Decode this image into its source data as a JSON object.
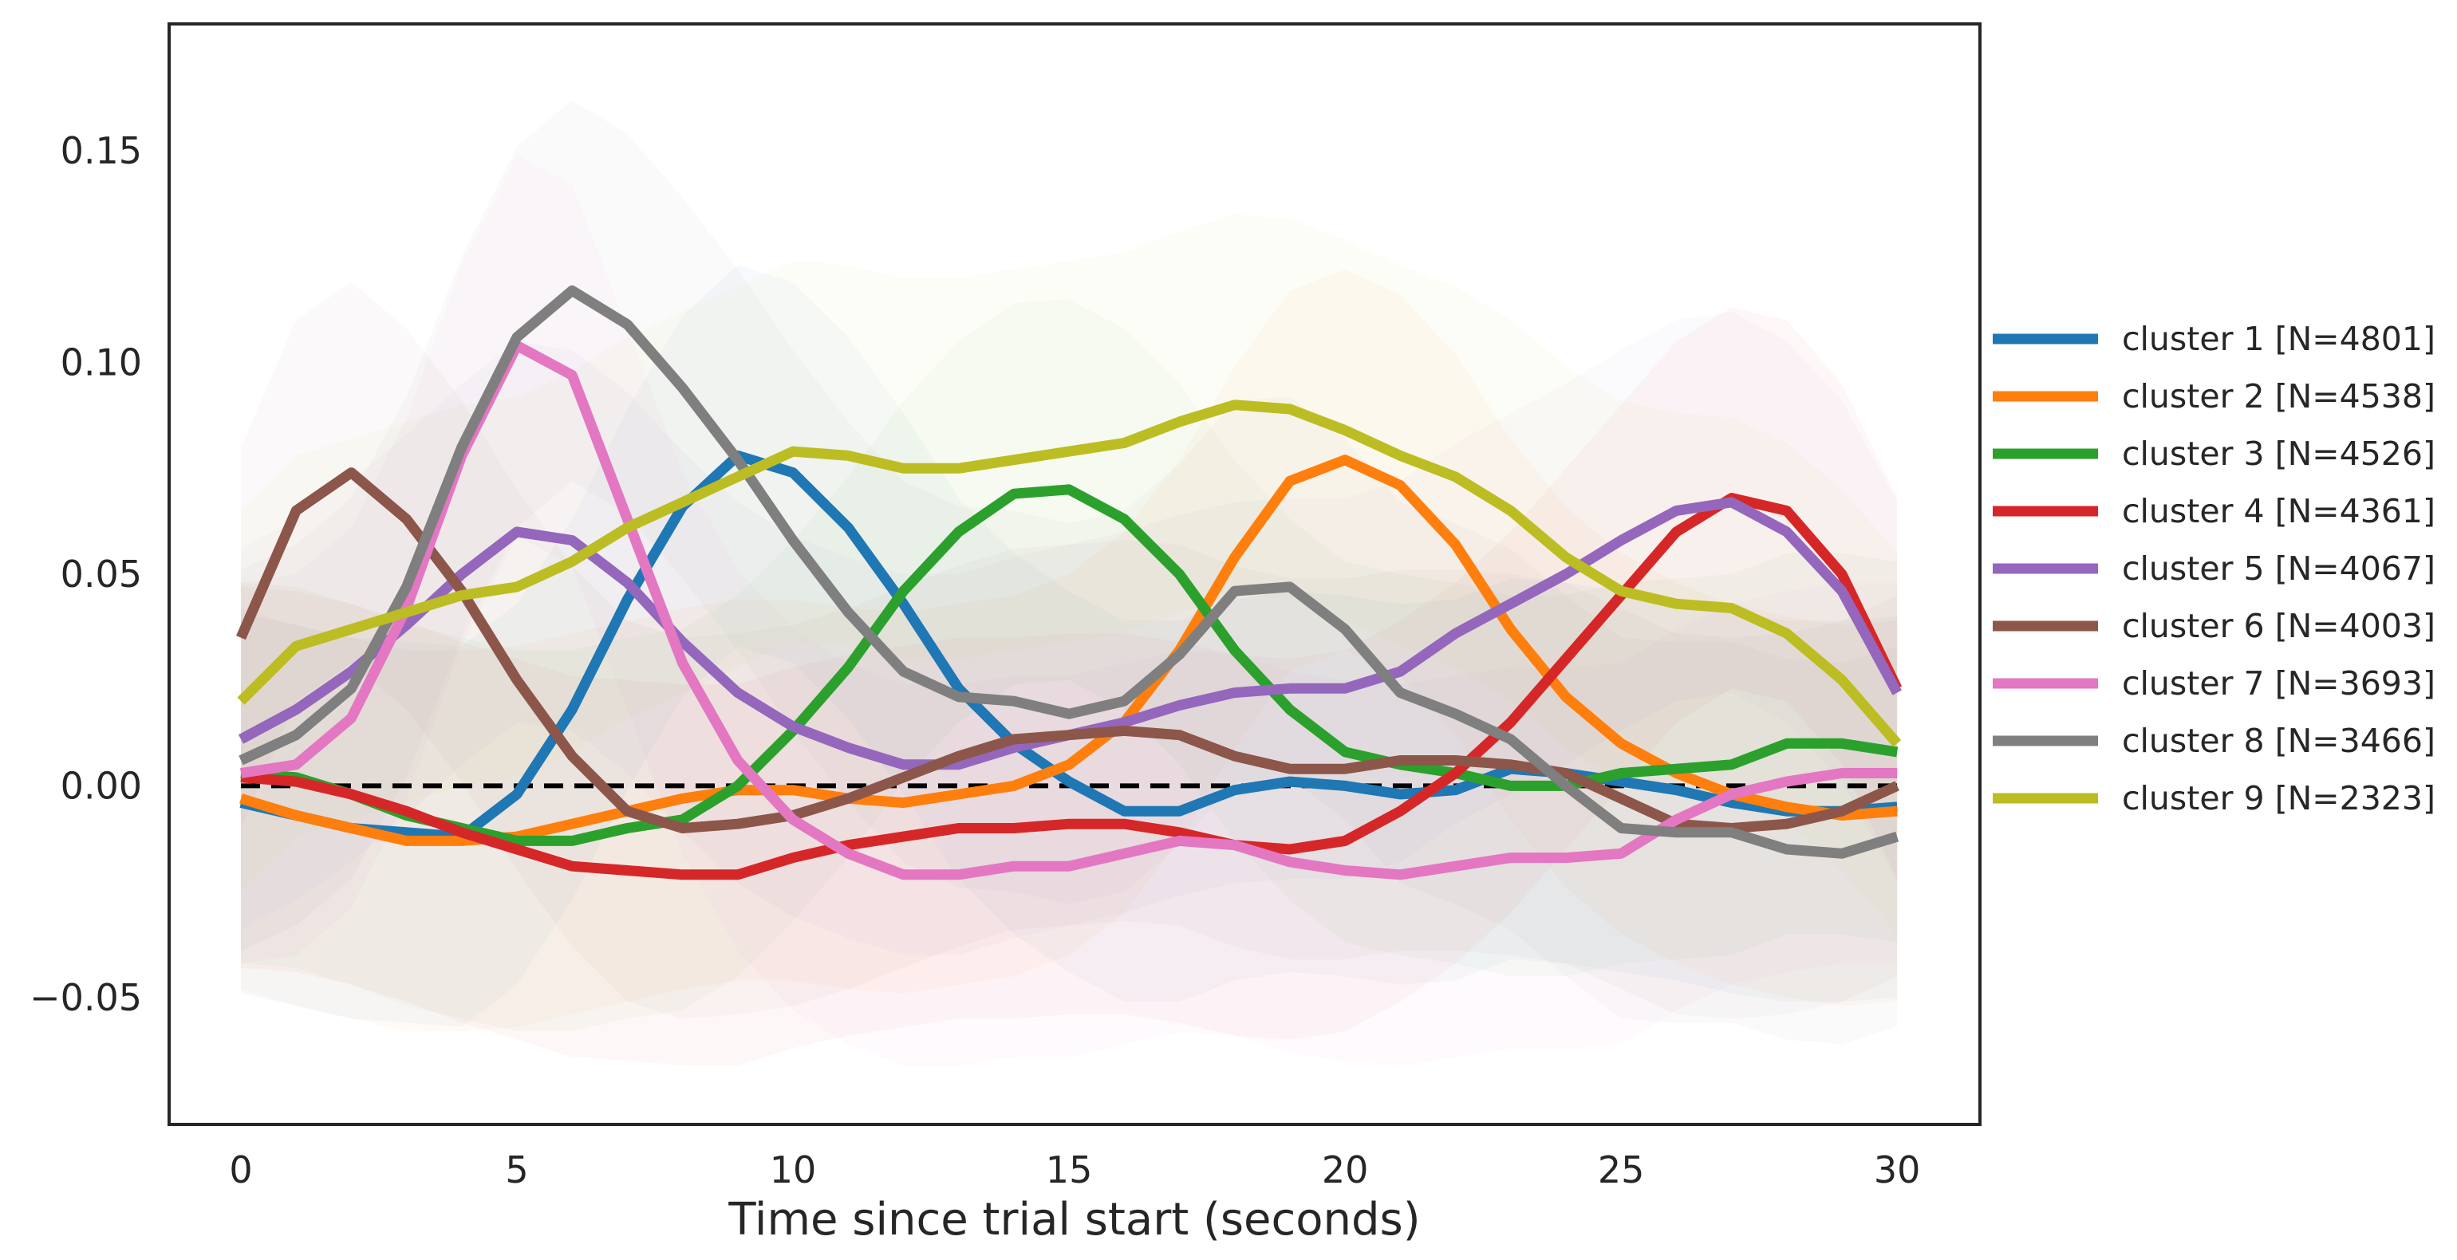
{
  "chart_data": {
    "type": "line",
    "title": "",
    "xlabel": "Time since trial start (seconds)",
    "ylabel": "",
    "xlim": [
      -1.3,
      31.5
    ],
    "ylim": [
      -0.08,
      0.18
    ],
    "xticks": [
      0,
      5,
      10,
      15,
      20,
      25,
      30
    ],
    "xtick_labels": [
      "0",
      "5",
      "10",
      "15",
      "20",
      "25",
      "30"
    ],
    "yticks": [
      -0.05,
      0.0,
      0.05,
      0.1,
      0.15
    ],
    "ytick_labels": [
      "−0.05",
      "0.00",
      "0.05",
      "0.10",
      "0.15"
    ],
    "grid": false,
    "legend_position": "outside-right",
    "reference_line": {
      "y": 0.0,
      "style": "dashed",
      "color": "#000000"
    },
    "x": [
      0,
      1,
      2,
      3,
      4,
      5,
      6,
      7,
      8,
      9,
      10,
      11,
      12,
      13,
      14,
      15,
      16,
      17,
      18,
      19,
      20,
      21,
      22,
      23,
      24,
      25,
      26,
      27,
      28,
      29,
      30
    ],
    "series": [
      {
        "name": "cluster 1 [N=4801]",
        "color": "#1f77b4",
        "band": 0.045,
        "values": [
          -0.004,
          -0.007,
          -0.01,
          -0.011,
          -0.012,
          -0.002,
          0.018,
          0.044,
          0.066,
          0.078,
          0.074,
          0.061,
          0.043,
          0.023,
          0.01,
          0.001,
          -0.006,
          -0.006,
          -0.001,
          0.001,
          0.0,
          -0.002,
          -0.001,
          0.004,
          0.003,
          0.001,
          -0.001,
          -0.004,
          -0.006,
          -0.006,
          -0.005
        ]
      },
      {
        "name": "cluster 2 [N=4538]",
        "color": "#ff7f0e",
        "band": 0.045,
        "values": [
          -0.003,
          -0.007,
          -0.01,
          -0.013,
          -0.013,
          -0.012,
          -0.009,
          -0.006,
          -0.003,
          -0.001,
          -0.001,
          -0.003,
          -0.004,
          -0.002,
          0.0,
          0.005,
          0.015,
          0.032,
          0.054,
          0.072,
          0.077,
          0.071,
          0.057,
          0.037,
          0.021,
          0.01,
          0.003,
          -0.002,
          -0.005,
          -0.007,
          -0.006
        ]
      },
      {
        "name": "cluster 3 [N=4526]",
        "color": "#2ca02c",
        "band": 0.045,
        "values": [
          0.003,
          0.002,
          -0.002,
          -0.007,
          -0.01,
          -0.013,
          -0.013,
          -0.01,
          -0.008,
          0.0,
          0.013,
          0.028,
          0.046,
          0.06,
          0.069,
          0.07,
          0.063,
          0.05,
          0.032,
          0.018,
          0.008,
          0.005,
          0.003,
          0.0,
          0.0,
          0.003,
          0.004,
          0.005,
          0.01,
          0.01,
          0.008
        ]
      },
      {
        "name": "cluster 4 [N=4361]",
        "color": "#d62728",
        "band": 0.045,
        "values": [
          0.002,
          0.001,
          -0.002,
          -0.006,
          -0.011,
          -0.015,
          -0.019,
          -0.02,
          -0.021,
          -0.021,
          -0.017,
          -0.014,
          -0.012,
          -0.01,
          -0.01,
          -0.009,
          -0.009,
          -0.011,
          -0.014,
          -0.015,
          -0.013,
          -0.006,
          0.003,
          0.015,
          0.03,
          0.045,
          0.06,
          0.068,
          0.065,
          0.05,
          0.023
        ]
      },
      {
        "name": "cluster 5 [N=4067]",
        "color": "#9467bd",
        "band": 0.045,
        "values": [
          0.011,
          0.018,
          0.027,
          0.038,
          0.05,
          0.06,
          0.058,
          0.048,
          0.034,
          0.022,
          0.014,
          0.009,
          0.005,
          0.005,
          0.009,
          0.012,
          0.015,
          0.019,
          0.022,
          0.023,
          0.023,
          0.027,
          0.036,
          0.043,
          0.05,
          0.058,
          0.065,
          0.067,
          0.06,
          0.046,
          0.022
        ]
      },
      {
        "name": "cluster 6 [N=4003]",
        "color": "#8c564b",
        "band": 0.045,
        "values": [
          0.035,
          0.065,
          0.074,
          0.063,
          0.046,
          0.025,
          0.007,
          -0.006,
          -0.01,
          -0.009,
          -0.007,
          -0.003,
          0.002,
          0.007,
          0.011,
          0.012,
          0.013,
          0.012,
          0.007,
          0.004,
          0.004,
          0.006,
          0.006,
          0.005,
          0.003,
          -0.003,
          -0.009,
          -0.01,
          -0.009,
          -0.006,
          0.0
        ]
      },
      {
        "name": "cluster 7 [N=3693]",
        "color": "#e377c2",
        "band": 0.045,
        "values": [
          0.003,
          0.005,
          0.016,
          0.042,
          0.078,
          0.104,
          0.097,
          0.063,
          0.029,
          0.006,
          -0.008,
          -0.016,
          -0.021,
          -0.021,
          -0.019,
          -0.019,
          -0.016,
          -0.013,
          -0.014,
          -0.018,
          -0.02,
          -0.021,
          -0.019,
          -0.017,
          -0.017,
          -0.016,
          -0.008,
          -0.002,
          0.001,
          0.003,
          0.003
        ]
      },
      {
        "name": "cluster 8 [N=3466]",
        "color": "#7f7f7f",
        "band": 0.045,
        "values": [
          0.006,
          0.012,
          0.023,
          0.047,
          0.08,
          0.106,
          0.117,
          0.109,
          0.094,
          0.077,
          0.058,
          0.041,
          0.027,
          0.021,
          0.02,
          0.017,
          0.02,
          0.031,
          0.046,
          0.047,
          0.037,
          0.022,
          0.017,
          0.011,
          0.0,
          -0.01,
          -0.011,
          -0.011,
          -0.015,
          -0.016,
          -0.012
        ]
      },
      {
        "name": "cluster 9 [N=2323]",
        "color": "#bcbd22",
        "band": 0.045,
        "values": [
          0.02,
          0.033,
          0.037,
          0.041,
          0.045,
          0.047,
          0.053,
          0.061,
          0.067,
          0.073,
          0.079,
          0.078,
          0.075,
          0.075,
          0.077,
          0.079,
          0.081,
          0.086,
          0.09,
          0.089,
          0.084,
          0.078,
          0.073,
          0.065,
          0.054,
          0.046,
          0.043,
          0.042,
          0.036,
          0.025,
          0.01
        ]
      }
    ]
  }
}
